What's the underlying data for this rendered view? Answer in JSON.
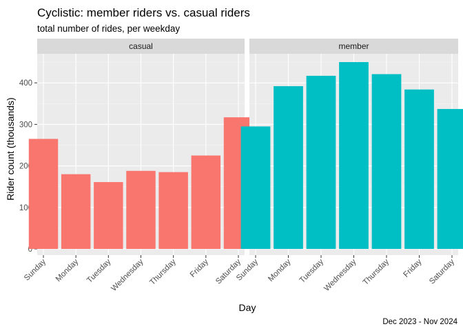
{
  "chart_data": {
    "type": "bar",
    "title": "Cyclistic: member riders vs. casual riders",
    "subtitle": "total number of rides, per weekday",
    "xlabel": "Day",
    "ylabel": "Rider count (thousands)",
    "caption": "Dec 2023 - Nov 2024",
    "ylim": [
      -15,
      470
    ],
    "yticks": [
      0,
      100,
      200,
      300,
      400
    ],
    "grid": true,
    "categories": [
      "Sunday",
      "Monday",
      "Tuesday",
      "Wednesday",
      "Thursday",
      "Friday",
      "Saturday"
    ],
    "facets": [
      {
        "label": "casual",
        "color": "#F8766D",
        "values": [
          265,
          180,
          161,
          188,
          185,
          225,
          317
        ]
      },
      {
        "label": "member",
        "color": "#00BFC4",
        "values": [
          295,
          392,
          417,
          450,
          421,
          384,
          337
        ]
      }
    ]
  }
}
